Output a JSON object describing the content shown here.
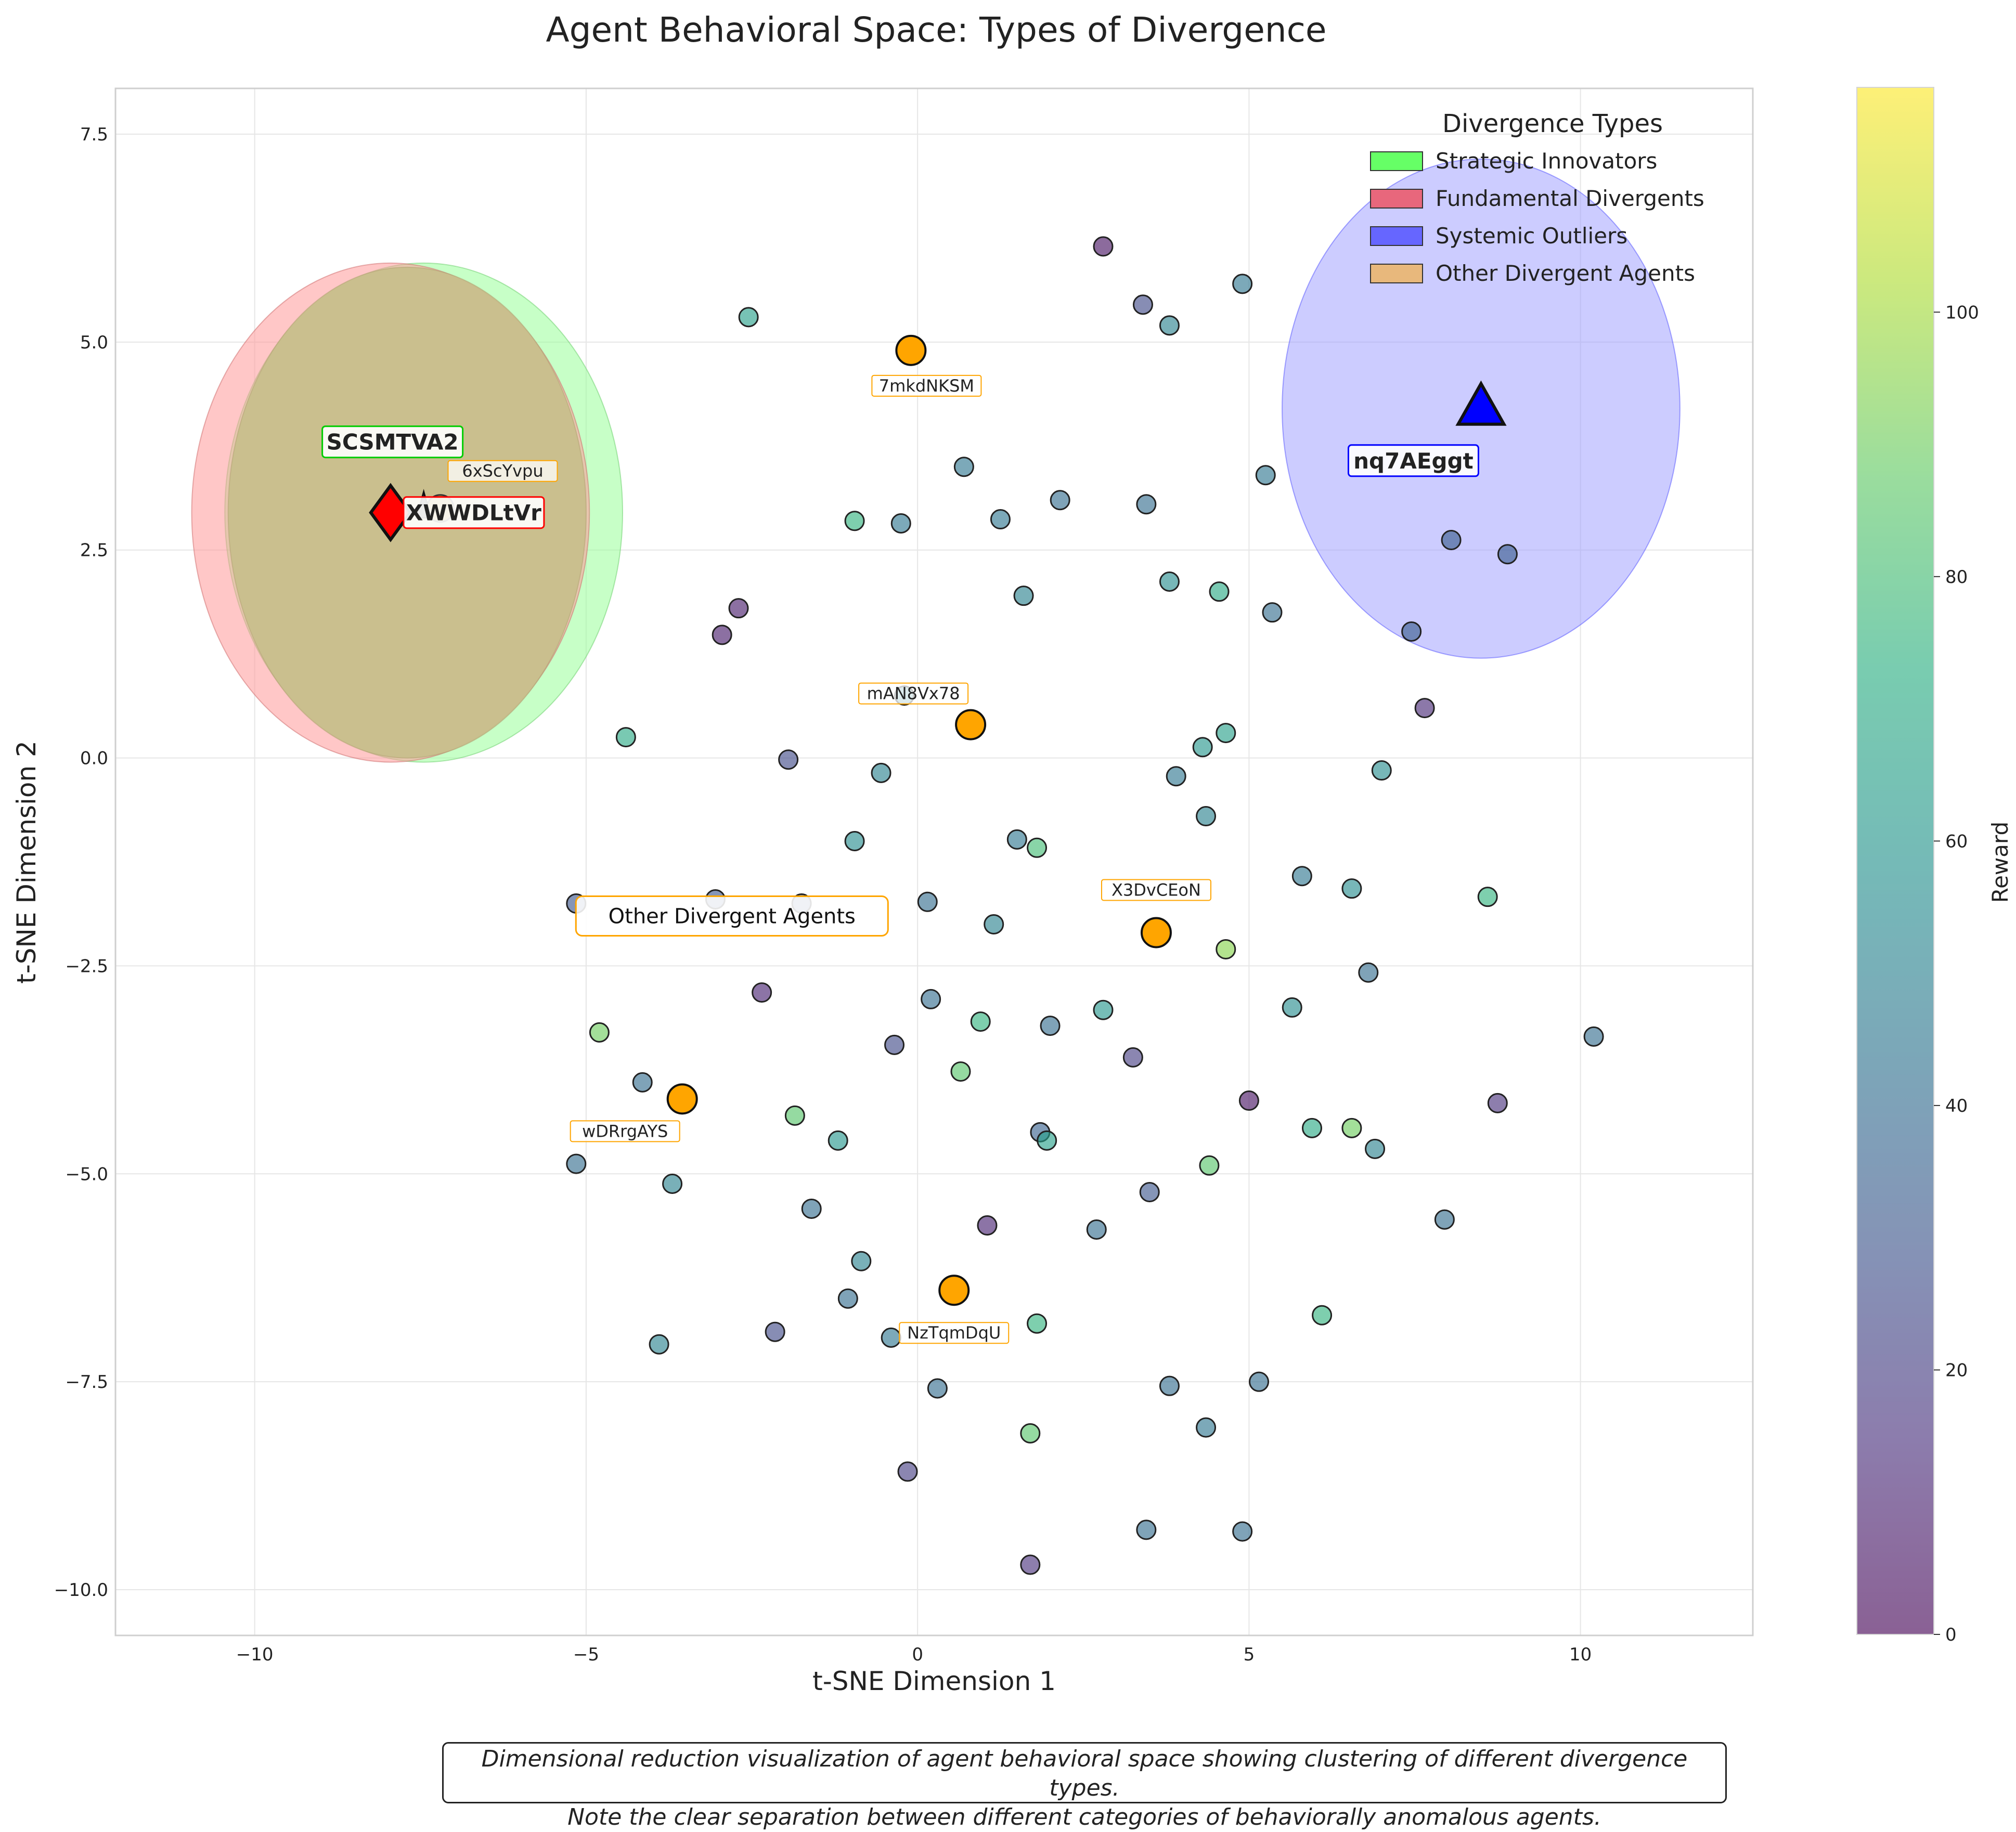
{
  "chart_data": {
    "type": "scatter",
    "title": "Agent Behavioral Space: Types of Divergence",
    "xlabel": "t-SNE Dimension 1",
    "ylabel": "t-SNE Dimension 2",
    "xlim": [
      -12.1,
      12.6
    ],
    "ylim": [
      -10.55,
      8.05
    ],
    "xticks": [
      -10,
      -5,
      0,
      5,
      10
    ],
    "yticks": [
      -10.0,
      -7.5,
      -5.0,
      -2.5,
      0.0,
      2.5,
      5.0,
      7.5
    ],
    "grid": true,
    "colorbar": {
      "label": "Reward",
      "min": 0,
      "max": 117,
      "ticks": [
        0,
        20,
        40,
        60,
        80,
        100
      ],
      "colormap": "viridis"
    },
    "legend": {
      "title": "Divergence Types",
      "position": "top-right",
      "entries": [
        {
          "label": "Strategic Innovators",
          "color": "#66ff66"
        },
        {
          "label": "Fundamental Divergents",
          "color": "#e8677c"
        },
        {
          "label": "Systemic Outliers",
          "color": "#6666ff"
        },
        {
          "label": "Other Divergent Agents",
          "color": "#e8b87c"
        }
      ]
    },
    "regions": [
      {
        "name": "Strategic Innovators",
        "cx": -7.45,
        "cy": 2.95,
        "rx": 3.0,
        "ry": 3.0,
        "color": "#99ff99"
      },
      {
        "name": "Fundamental Divergents",
        "cx": -7.95,
        "cy": 2.95,
        "rx": 3.0,
        "ry": 3.0,
        "color": "#ff9999"
      },
      {
        "name": "Systemic Outliers",
        "cx": 8.5,
        "cy": 4.2,
        "rx": 3.0,
        "ry": 3.0,
        "color": "#9999ff"
      },
      {
        "name": "Other Divergent Agents",
        "cx": -7.7,
        "cy": 2.95,
        "rx": 2.7,
        "ry": 2.95,
        "color": "#c8bf8c"
      }
    ],
    "highlighted_agents": [
      {
        "id": "SCSMTVA2",
        "type": "Strategic Innovators",
        "x": -7.45,
        "y": 3.05,
        "marker": "star",
        "color": "#00cc00"
      },
      {
        "id": "XWWDLtVr",
        "type": "Fundamental Divergents",
        "x": -7.95,
        "y": 2.95,
        "marker": "diamond",
        "color": "#ff0000"
      },
      {
        "id": "nq7AEggt",
        "type": "Systemic Outliers",
        "x": 8.5,
        "y": 4.2,
        "marker": "triangle",
        "color": "#0000ff"
      }
    ],
    "other_divergent": {
      "annotation": "Other Divergent Agents",
      "points": [
        {
          "id": "7mkdNKSM",
          "x": -0.1,
          "y": 4.9
        },
        {
          "id": "mAN8Vx78",
          "x": 0.8,
          "y": 0.4
        },
        {
          "id": "X3DvCEoN",
          "x": 3.6,
          "y": -2.1
        },
        {
          "id": "wDRrgAYS",
          "x": -3.55,
          "y": -4.1
        },
        {
          "id": "NzTqmDqU",
          "x": 0.55,
          "y": -6.4
        },
        {
          "id": "6xScYvpu",
          "x": -7.2,
          "y": 3.0
        }
      ]
    },
    "points": [
      [
        2.8,
        6.15,
        5
      ],
      [
        3.4,
        5.45,
        25
      ],
      [
        3.8,
        5.2,
        50
      ],
      [
        4.9,
        5.7,
        45
      ],
      [
        -2.55,
        5.3,
        65
      ],
      [
        0.7,
        3.5,
        45
      ],
      [
        2.15,
        3.1,
        40
      ],
      [
        3.45,
        3.05,
        40
      ],
      [
        5.25,
        3.4,
        45
      ],
      [
        -0.95,
        2.85,
        75
      ],
      [
        -0.25,
        2.82,
        45
      ],
      [
        1.25,
        2.87,
        45
      ],
      [
        1.6,
        1.95,
        50
      ],
      [
        3.8,
        2.12,
        55
      ],
      [
        4.55,
        2.0,
        70
      ],
      [
        5.35,
        1.75,
        40
      ],
      [
        7.45,
        1.52,
        33
      ],
      [
        8.05,
        2.62,
        33
      ],
      [
        8.9,
        2.45,
        33
      ],
      [
        -2.7,
        1.8,
        8
      ],
      [
        -2.95,
        1.48,
        8
      ],
      [
        7.65,
        0.6,
        12
      ],
      [
        -0.2,
        0.75,
        50
      ],
      [
        -4.4,
        0.25,
        70
      ],
      [
        -1.95,
        -0.02,
        25
      ],
      [
        -0.55,
        -0.18,
        50
      ],
      [
        4.3,
        0.13,
        60
      ],
      [
        4.65,
        0.3,
        65
      ],
      [
        7.0,
        -0.15,
        55
      ],
      [
        3.9,
        -0.22,
        45
      ],
      [
        4.35,
        -0.7,
        50
      ],
      [
        -0.95,
        -1.0,
        55
      ],
      [
        1.5,
        -0.98,
        45
      ],
      [
        1.8,
        -1.08,
        80
      ],
      [
        5.8,
        -1.42,
        45
      ],
      [
        6.55,
        -1.57,
        55
      ],
      [
        8.6,
        -1.67,
        75
      ],
      [
        -5.15,
        -1.75,
        30
      ],
      [
        -3.05,
        -1.7,
        30
      ],
      [
        -1.75,
        -1.75,
        30
      ],
      [
        0.15,
        -1.73,
        40
      ],
      [
        1.15,
        -2.0,
        50
      ],
      [
        4.65,
        -2.3,
        95
      ],
      [
        6.8,
        -2.58,
        40
      ],
      [
        10.2,
        -3.35,
        40
      ],
      [
        -2.35,
        -2.82,
        10
      ],
      [
        0.2,
        -2.9,
        40
      ],
      [
        5.65,
        -3.0,
        55
      ],
      [
        2.8,
        -3.03,
        60
      ],
      [
        -4.8,
        -3.3,
        90
      ],
      [
        0.95,
        -3.17,
        75
      ],
      [
        2.0,
        -3.22,
        40
      ],
      [
        -0.35,
        -3.45,
        25
      ],
      [
        3.25,
        -3.6,
        20
      ],
      [
        0.65,
        -3.77,
        85
      ],
      [
        -4.15,
        -3.9,
        40
      ],
      [
        5.0,
        -4.12,
        5
      ],
      [
        8.75,
        -4.15,
        15
      ],
      [
        -1.85,
        -4.3,
        85
      ],
      [
        -1.2,
        -4.6,
        60
      ],
      [
        1.85,
        -4.5,
        35
      ],
      [
        1.95,
        -4.6,
        65
      ],
      [
        5.95,
        -4.45,
        70
      ],
      [
        6.55,
        -4.45,
        90
      ],
      [
        6.9,
        -4.7,
        50
      ],
      [
        4.4,
        -4.9,
        85
      ],
      [
        -5.15,
        -4.88,
        40
      ],
      [
        -3.7,
        -5.12,
        50
      ],
      [
        3.5,
        -5.22,
        30
      ],
      [
        -1.6,
        -5.42,
        40
      ],
      [
        7.95,
        -5.55,
        40
      ],
      [
        1.05,
        -5.62,
        10
      ],
      [
        2.7,
        -5.67,
        40
      ],
      [
        -0.85,
        -6.05,
        50
      ],
      [
        -1.05,
        -6.5,
        40
      ],
      [
        6.1,
        -6.7,
        75
      ],
      [
        1.8,
        -6.8,
        75
      ],
      [
        -2.15,
        -6.9,
        25
      ],
      [
        -0.4,
        -6.97,
        45
      ],
      [
        -3.9,
        -7.05,
        50
      ],
      [
        0.3,
        -7.58,
        40
      ],
      [
        3.8,
        -7.55,
        40
      ],
      [
        5.15,
        -7.5,
        40
      ],
      [
        1.7,
        -8.12,
        85
      ],
      [
        4.35,
        -8.05,
        45
      ],
      [
        -0.15,
        -8.58,
        20
      ],
      [
        3.45,
        -9.28,
        40
      ],
      [
        4.9,
        -9.3,
        40
      ],
      [
        1.7,
        -9.7,
        15
      ]
    ]
  },
  "caption": {
    "line1": "Dimensional reduction visualization of agent behavioral space showing clustering of different divergence types.",
    "line2": "Note the clear separation between different categories of behaviorally anomalous agents."
  }
}
